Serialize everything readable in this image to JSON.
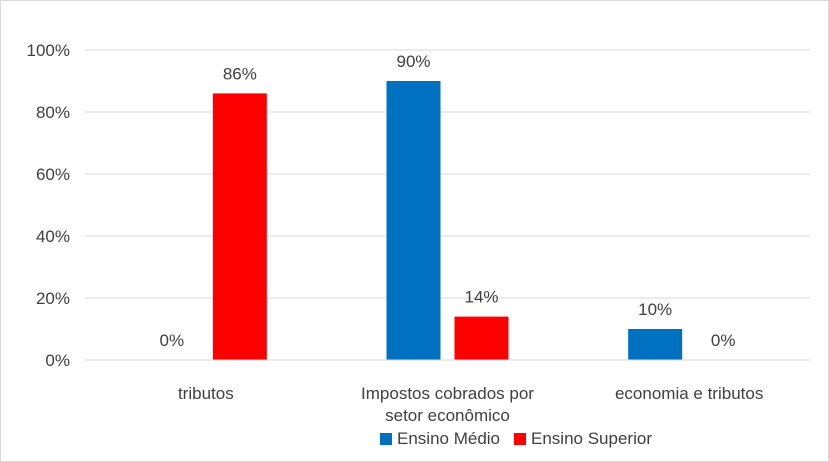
{
  "chart_data": {
    "type": "bar",
    "categories": [
      [
        "tributos"
      ],
      [
        "Impostos cobrados por",
        "setor econômico"
      ],
      [
        "economia e tributos"
      ]
    ],
    "series": [
      {
        "name": "Ensino Médio",
        "color": "#0070c0",
        "values": [
          0,
          90,
          10
        ],
        "labels": [
          "0%",
          "90%",
          "10%"
        ]
      },
      {
        "name": "Ensino Superior",
        "color": "#ff0000",
        "values": [
          86,
          14,
          0
        ],
        "labels": [
          "86%",
          "14%",
          "0%"
        ]
      }
    ],
    "y_ticks": [
      "0%",
      "20%",
      "40%",
      "60%",
      "80%",
      "100%"
    ],
    "ylim": [
      0,
      100
    ],
    "grid": true,
    "legend_position": "bottom"
  }
}
